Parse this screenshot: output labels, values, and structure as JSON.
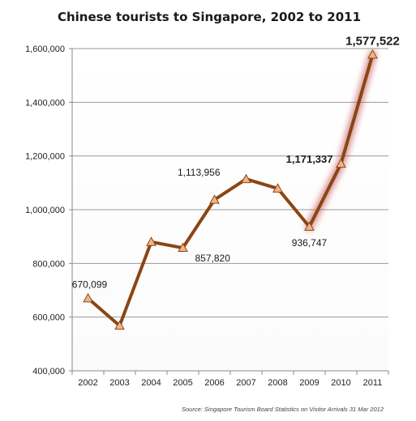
{
  "chart_data": {
    "type": "line",
    "title": "Chinese tourists to Singapore, 2002 to 2011",
    "source": "Source: Singapore Tourism Board Statistics on Visitor Arrivals 31 Mar 2012",
    "xlabel": "",
    "ylabel": "",
    "categories": [
      "2002",
      "2003",
      "2004",
      "2005",
      "2006",
      "2007",
      "2008",
      "2009",
      "2010",
      "2011"
    ],
    "series": [
      {
        "name": "",
        "values": [
          670099,
          568000,
          880000,
          857820,
          1037000,
          1113956,
          1079000,
          936747,
          1171337,
          1577522
        ]
      }
    ],
    "ylim": [
      400000,
      1600000
    ],
    "yticks": [
      400000,
      600000,
      800000,
      1000000,
      1200000,
      1400000,
      1600000
    ],
    "ytick_labels": [
      "400,000",
      "600,000",
      "800,000",
      "1,000,000",
      "1,200,000",
      "1,400,000",
      "1,600,000"
    ],
    "data_labels": [
      {
        "index": 0,
        "text": "670,099",
        "style": "normal"
      },
      {
        "index": 3,
        "text": "857,820",
        "style": "normal"
      },
      {
        "index": 5,
        "text": "1,113,956",
        "style": "normal"
      },
      {
        "index": 7,
        "text": "936,747",
        "style": "normal"
      },
      {
        "index": 8,
        "text": "1,171,337",
        "style": "bold"
      },
      {
        "index": 9,
        "text": "1,577,522",
        "style": "bold-large"
      }
    ],
    "highlight_range": [
      7,
      9
    ],
    "grid": "horizontal",
    "legend": "none",
    "colors": {
      "line": "#8b4513",
      "marker_fill": "#f2b48a",
      "marker_stroke": "#8b4513",
      "glow": "#c0504d",
      "grid": "#9a9a9a",
      "axis": "#888888"
    }
  }
}
